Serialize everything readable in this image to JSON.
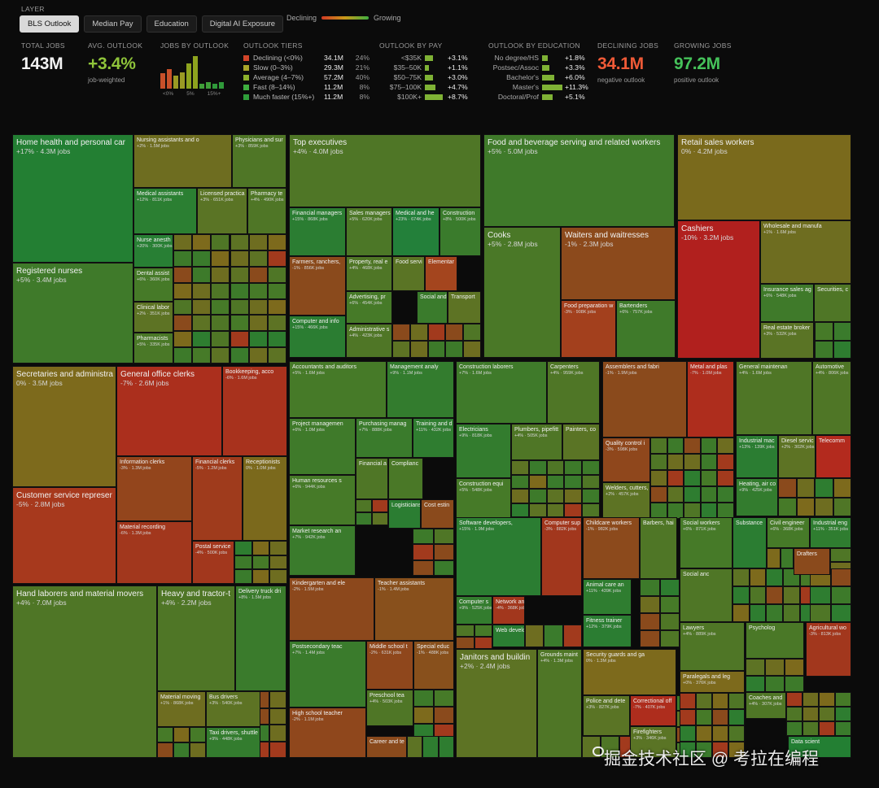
{
  "header": {
    "layer_label": "LAYER"
  },
  "tabs": [
    {
      "label": "BLS Outlook",
      "active": true
    },
    {
      "label": "Median Pay",
      "active": false
    },
    {
      "label": "Education",
      "active": false
    },
    {
      "label": "Digital AI Exposure",
      "active": false
    }
  ],
  "legend": {
    "left": "Declining",
    "right": "Growing"
  },
  "stats": {
    "total": {
      "label": "TOTAL JOBS",
      "value": "143M"
    },
    "outlook": {
      "label": "AVG. OUTLOOK",
      "value": "+3.4%",
      "sub": "job-weighted"
    },
    "jobs_by_outlook": {
      "label": "JOBS BY OUTLOOK",
      "ticks": [
        "<0%",
        "5%",
        "15%+"
      ],
      "bars": [
        {
          "value": 34.1,
          "color": "#c8502a"
        },
        {
          "value": 29.3,
          "color": "#9a9a24"
        },
        {
          "value": 57.2,
          "color": "#8ea41e"
        },
        {
          "value": 11.2,
          "color": "#3f9f38"
        },
        {
          "value": 11.2,
          "color": "#2f9a3a"
        }
      ]
    },
    "declining": {
      "label": "DECLINING JOBS",
      "value": "34.1M",
      "sub": "negative outlook"
    },
    "growing": {
      "label": "GROWING JOBS",
      "value": "97.2M",
      "sub": "positive outlook"
    }
  },
  "tiers": {
    "label": "OUTLOOK TIERS",
    "rows": [
      {
        "name": "Declining (<0%)",
        "jobs": "34.1M",
        "pct": "24%",
        "color": "#d2452a"
      },
      {
        "name": "Slow (0–3%)",
        "jobs": "29.3M",
        "pct": "21%",
        "color": "#a8a62a"
      },
      {
        "name": "Average (4–7%)",
        "jobs": "57.2M",
        "pct": "40%",
        "color": "#8cb02c"
      },
      {
        "name": "Fast (8–14%)",
        "jobs": "11.2M",
        "pct": "8%",
        "color": "#3fae3f"
      },
      {
        "name": "Much faster (15%+)",
        "jobs": "11.2M",
        "pct": "8%",
        "color": "#2f9e3a"
      }
    ]
  },
  "by_pay": {
    "label": "OUTLOOK BY PAY",
    "rows": [
      {
        "name": "<$35K",
        "val": "+3.1%",
        "level": 0.31
      },
      {
        "name": "$35–50K",
        "val": "+1.1%",
        "level": 0.11
      },
      {
        "name": "$50–75K",
        "val": "+3.0%",
        "level": 0.3
      },
      {
        "name": "$75–100K",
        "val": "+4.7%",
        "level": 0.47
      },
      {
        "name": "$100K+",
        "val": "+8.7%",
        "level": 0.87
      }
    ]
  },
  "by_edu": {
    "label": "OUTLOOK BY EDUCATION",
    "rows": [
      {
        "name": "No degree/HS",
        "val": "+1.8%",
        "level": 0.16
      },
      {
        "name": "Postsec/Assoc",
        "val": "+3.3%",
        "level": 0.29
      },
      {
        "name": "Bachelor's",
        "val": "+6.0%",
        "level": 0.53
      },
      {
        "name": "Master's",
        "val": "+11.3%",
        "level": 1.0
      },
      {
        "name": "Doctoral/Prof",
        "val": "+5.1%",
        "level": 0.45
      }
    ]
  },
  "tiles": [
    {
      "title": "Home health and personal car",
      "sub": "+17% · 4.3M jobs",
      "color": "#237f33"
    },
    {
      "title": "Registered nurses",
      "sub": "+5% · 3.4M jobs",
      "color": "#3f7a2a"
    },
    {
      "title": "Nursing assistants and o",
      "sub": "+2% · 1.5M jobs",
      "color": "#6e6d20"
    },
    {
      "title": "Physicians and sur",
      "sub": "+3% · 859K jobs",
      "color": "#4f7626"
    },
    {
      "title": "Medical assistants",
      "sub": "+12% · 811K jobs",
      "color": "#2b7f32"
    },
    {
      "title": "Licensed practica",
      "sub": "+3% · 651K jobs",
      "color": "#5a7425"
    },
    {
      "title": "Pharmacy te",
      "sub": "+4% · 490K jobs",
      "color": "#4f7626"
    },
    {
      "title": "Nurse anesth",
      "sub": "+20% · 300K jobs",
      "color": "#287f34"
    },
    {
      "title": "Dental assist",
      "sub": "+6% · 360K jobs",
      "color": "#467a28"
    },
    {
      "title": "Clinical labor",
      "sub": "+2% · 351K jobs",
      "color": "#5d7324"
    },
    {
      "title": "Pharmacists",
      "sub": "+5% · 335K jobs",
      "color": "#4a7827"
    },
    {
      "title": "Top executives",
      "sub": "+4% · 4.0M jobs",
      "color": "#4f7626"
    },
    {
      "title": "Financial managers",
      "sub": "+15% · 868K jobs",
      "color": "#2b7d32"
    },
    {
      "title": "Sales managers",
      "sub": "+5% · 620K jobs",
      "color": "#4c7727"
    },
    {
      "title": "Medical and he",
      "sub": "+23% · 674K jobs",
      "color": "#23803a"
    },
    {
      "title": "Construction",
      "sub": "+8% · 500K jobs",
      "color": "#3a7b2c"
    },
    {
      "title": "Farmers, ranchers,",
      "sub": "-1% · 856K jobs",
      "color": "#8a4a1c"
    },
    {
      "title": "Property, real e",
      "sub": "+4% · 468K jobs",
      "color": "#4f7626"
    },
    {
      "title": "Food servi",
      "sub": "",
      "color": "#5a7425"
    },
    {
      "title": "Elementar",
      "sub": "",
      "color": "#a4451e"
    },
    {
      "title": "Advertising, pr",
      "sub": "+6% · 454K jobs",
      "color": "#467a28"
    },
    {
      "title": "Social and",
      "sub": "",
      "color": "#3a7b2c"
    },
    {
      "title": "Transport",
      "sub": "",
      "color": "#5d7324"
    },
    {
      "title": "Computer and info",
      "sub": "+15% · 466K jobs",
      "color": "#2b7d32"
    },
    {
      "title": "Administrative s",
      "sub": "+4% · 423K jobs",
      "color": "#4f7626"
    },
    {
      "title": "Food and beverage serving and related workers",
      "sub": "+5% · 5.0M jobs",
      "color": "#3f7a2a"
    },
    {
      "title": "Cooks",
      "sub": "+5% · 2.8M jobs",
      "color": "#4a7827"
    },
    {
      "title": "Waiters and waitresses",
      "sub": "-1% · 2.3M jobs",
      "color": "#8c4a1c"
    },
    {
      "title": "Food preparation w",
      "sub": "-3% · 908K jobs",
      "color": "#a3401d"
    },
    {
      "title": "Bartenders",
      "sub": "+6% · 757K jobs",
      "color": "#3f7a2a"
    },
    {
      "title": "Retail sales workers",
      "sub": "0% · 4.2M jobs",
      "color": "#7a6a1c"
    },
    {
      "title": "Cashiers",
      "sub": "-10% · 3.2M jobs",
      "color": "#b1201e"
    },
    {
      "title": "Wholesale and manufa",
      "sub": "+1% · 1.6M jobs",
      "color": "#6e6d20"
    },
    {
      "title": "Insurance sales ag",
      "sub": "+6% · 548K jobs",
      "color": "#3f7a2a"
    },
    {
      "title": "Securities, c",
      "sub": "",
      "color": "#4f7626"
    },
    {
      "title": "Real estate broker",
      "sub": "+3% · 532K jobs",
      "color": "#5a7425"
    },
    {
      "title": "Secretaries and administra",
      "sub": "0% · 3.5M jobs",
      "color": "#7d6a1c"
    },
    {
      "title": "Customer service represer",
      "sub": "-5% · 2.8M jobs",
      "color": "#a7391d"
    },
    {
      "title": "General office clerks",
      "sub": "-7% · 2.6M jobs",
      "color": "#ab2f1d"
    },
    {
      "title": "Bookkeeping, acco",
      "sub": "-6% · 1.6M jobs",
      "color": "#a8321d"
    },
    {
      "title": "Information clerks",
      "sub": "-3% · 1.3M jobs",
      "color": "#93451c"
    },
    {
      "title": "Financial clerks",
      "sub": "-5% · 1.2M jobs",
      "color": "#9f3b1c"
    },
    {
      "title": "Receptionists",
      "sub": "0% · 1.0M jobs",
      "color": "#7b691c"
    },
    {
      "title": "Material recording",
      "sub": "-6% · 1.3M jobs",
      "color": "#a2371d"
    },
    {
      "title": "Postal service",
      "sub": "-4% · 500K jobs",
      "color": "#a2371d"
    },
    {
      "title": "Accountants and auditors",
      "sub": "+5% · 1.6M jobs",
      "color": "#467a28"
    },
    {
      "title": "Management analy",
      "sub": "+9% · 1.1M jobs",
      "color": "#337c2e"
    },
    {
      "title": "Project managemen",
      "sub": "+6% · 1.0M jobs",
      "color": "#3f7a2a"
    },
    {
      "title": "Purchasing manag",
      "sub": "+7% · 888K jobs",
      "color": "#3a7b2c"
    },
    {
      "title": "Training and d",
      "sub": "+11% · 432K jobs",
      "color": "#2f7d30"
    },
    {
      "title": "Human resources s",
      "sub": "+6% · 944K jobs",
      "color": "#467a28"
    },
    {
      "title": "Financial a",
      "sub": "",
      "color": "#4f7626"
    },
    {
      "title": "Complianc",
      "sub": "",
      "color": "#4a7827"
    },
    {
      "title": "Logisticians",
      "sub": "",
      "color": "#2b7d32"
    },
    {
      "title": "Cost estin",
      "sub": "",
      "color": "#8a4a1c"
    },
    {
      "title": "Market research an",
      "sub": "+7% · 942K jobs",
      "color": "#3a7b2c"
    },
    {
      "title": "Construction laborers",
      "sub": "+7% · 1.6M jobs",
      "color": "#3f7a2a"
    },
    {
      "title": "Carpenters",
      "sub": "+4% · 959K jobs",
      "color": "#4f7626"
    },
    {
      "title": "Electricians",
      "sub": "+9% · 818K jobs",
      "color": "#337c2e"
    },
    {
      "title": "Plumbers, pipefitt",
      "sub": "+4% · 505K jobs",
      "color": "#4f7626"
    },
    {
      "title": "Painters, co",
      "sub": "",
      "color": "#5a7425"
    },
    {
      "title": "Construction equi",
      "sub": "+5% · 548K jobs",
      "color": "#467a28"
    },
    {
      "title": "Assemblers and fabri",
      "sub": "-1% · 1.9M jobs",
      "color": "#8a4a1c"
    },
    {
      "title": "Metal and plas",
      "sub": "-7% · 1.0M jobs",
      "color": "#ae2d1d"
    },
    {
      "title": "Quality control i",
      "sub": "-3% · 598K jobs",
      "color": "#8f471c"
    },
    {
      "title": "Welders, cutters,",
      "sub": "+2% · 457K jobs",
      "color": "#5d7324"
    },
    {
      "title": "General maintenan",
      "sub": "+4% · 1.6M jobs",
      "color": "#4f7626"
    },
    {
      "title": "Automotive",
      "sub": "+4% · 806K jobs",
      "color": "#4f7626"
    },
    {
      "title": "Industrial mac",
      "sub": "+13% · 139K jobs",
      "color": "#2b7d32"
    },
    {
      "title": "Diesel servic",
      "sub": "+2% · 302K jobs",
      "color": "#5d7324"
    },
    {
      "title": "Telecomm",
      "sub": "",
      "color": "#b32a1e"
    },
    {
      "title": "Heating, air co",
      "sub": "+9% · 425K jobs",
      "color": "#337c2e"
    },
    {
      "title": "Hand laborers and material movers",
      "sub": "+4% · 7.0M jobs",
      "color": "#4f7626"
    },
    {
      "title": "Heavy and tractor-t",
      "sub": "+4% · 2.2M jobs",
      "color": "#4f7626"
    },
    {
      "title": "Delivery truck dri",
      "sub": "+8% · 1.5M jobs",
      "color": "#3a7b2c"
    },
    {
      "title": "Material moving",
      "sub": "+1% · 868K jobs",
      "color": "#6e6d20"
    },
    {
      "title": "Bus drivers",
      "sub": "+3% · 540K jobs",
      "color": "#5d7324"
    },
    {
      "title": "Taxi drivers, shuttle",
      "sub": "+9% · 448K jobs",
      "color": "#337c2e"
    },
    {
      "title": "Kindergarten and ele",
      "sub": "-2% · 1.5M jobs",
      "color": "#8c481c"
    },
    {
      "title": "Teacher assistants",
      "sub": "-1% · 1.4M jobs",
      "color": "#88501c"
    },
    {
      "title": "Postsecondary teac",
      "sub": "+7% · 1.4M jobs",
      "color": "#3a7b2c"
    },
    {
      "title": "Middle school t",
      "sub": "-2% · 631K jobs",
      "color": "#8f471c"
    },
    {
      "title": "Special educ",
      "sub": "-1% · 488K jobs",
      "color": "#88501c"
    },
    {
      "title": "Preschool tea",
      "sub": "+4% · 503K jobs",
      "color": "#4f7626"
    },
    {
      "title": "High school teacher",
      "sub": "-2% · 1.1M jobs",
      "color": "#8f471c"
    },
    {
      "title": "Career and te",
      "sub": "",
      "color": "#8a4a1c"
    },
    {
      "title": "Software developers,",
      "sub": "+15% · 1.9M jobs",
      "color": "#2b7d32"
    },
    {
      "title": "Computer sup",
      "sub": "-3% · 882K jobs",
      "color": "#a2371d"
    },
    {
      "title": "Computer s",
      "sub": "+9% · 525K jobs",
      "color": "#337c2e"
    },
    {
      "title": "Network and",
      "sub": "-4% · 368K jobs",
      "color": "#a2371d"
    },
    {
      "title": "Web develop",
      "sub": "",
      "color": "#2b7d32"
    },
    {
      "title": "Childcare workers",
      "sub": "-1% · 982K jobs",
      "color": "#8c4a1c"
    },
    {
      "title": "Barbers, hai",
      "sub": "",
      "color": "#4f7626"
    },
    {
      "title": "Animal care an",
      "sub": "+11% · 439K jobs",
      "color": "#2f7d30"
    },
    {
      "title": "Fitness trainer",
      "sub": "+12% · 379K jobs",
      "color": "#2b7d32"
    },
    {
      "title": "Social workers",
      "sub": "+6% · 871K jobs",
      "color": "#467a28"
    },
    {
      "title": "Substance",
      "sub": "",
      "color": "#2b7d32"
    },
    {
      "title": "Civil engineer",
      "sub": "+6% · 368K jobs",
      "color": "#467a28"
    },
    {
      "title": "Industrial eng",
      "sub": "+11% · 351K jobs",
      "color": "#2f7d30"
    },
    {
      "title": "Social anc",
      "sub": "",
      "color": "#4f7626"
    },
    {
      "title": "Drafters",
      "sub": "",
      "color": "#8a4a1c"
    },
    {
      "title": "Janitors and buildin",
      "sub": "+2% · 2.4M jobs",
      "color": "#5d7324"
    },
    {
      "title": "Grounds maint",
      "sub": "+4% · 1.3M jobs",
      "color": "#4f7626"
    },
    {
      "title": "Security guards and ga",
      "sub": "0% · 1.3M jobs",
      "color": "#7d6a1c"
    },
    {
      "title": "Police and dete",
      "sub": "+3% · 827K jobs",
      "color": "#5a7425"
    },
    {
      "title": "Correctional off",
      "sub": "-7% · 407K jobs",
      "color": "#ae2d1d"
    },
    {
      "title": "Firefighters",
      "sub": "+3% · 346K jobs",
      "color": "#5a7425"
    },
    {
      "title": "Lawyers",
      "sub": "+4% · 889K jobs",
      "color": "#4f7626"
    },
    {
      "title": "Psycholog",
      "sub": "",
      "color": "#4a7827"
    },
    {
      "title": "Agricultural wo",
      "sub": "-3% · 813K jobs",
      "color": "#a2371d"
    },
    {
      "title": "Paralegals and leg",
      "sub": "+0% · 376K jobs",
      "color": "#7d6a1c"
    },
    {
      "title": "Coaches and",
      "sub": "+4% · 307K jobs",
      "color": "#4f7626"
    },
    {
      "title": "Data scient",
      "sub": "",
      "color": "#237f33"
    }
  ],
  "watermark": "掘金技术社区 @ 考拉在编程"
}
